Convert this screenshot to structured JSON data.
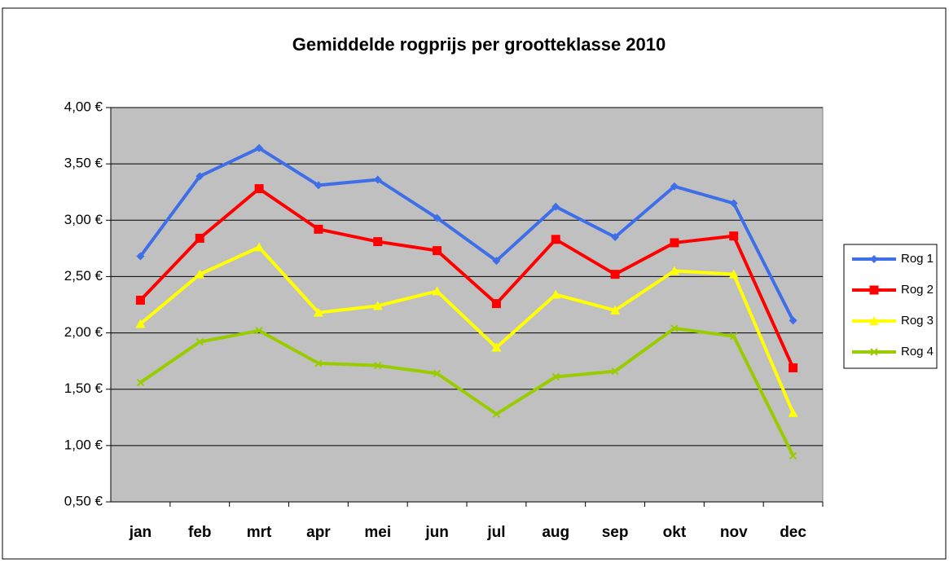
{
  "chart_data": {
    "type": "line",
    "title": "Gemiddelde rogprijs per grootteklasse 2010",
    "categories": [
      "jan",
      "feb",
      "mrt",
      "apr",
      "mei",
      "jun",
      "jul",
      "aug",
      "sep",
      "okt",
      "nov",
      "dec"
    ],
    "series": [
      {
        "name": "Rog 1",
        "color": "#3f6fe8",
        "marker": "diamond",
        "values": [
          2.68,
          3.39,
          3.64,
          3.31,
          3.36,
          3.02,
          2.64,
          3.12,
          2.85,
          3.3,
          3.15,
          2.11
        ]
      },
      {
        "name": "Rog 2",
        "color": "#ff0000",
        "marker": "square",
        "values": [
          2.29,
          2.84,
          3.28,
          2.92,
          2.81,
          2.73,
          2.26,
          2.83,
          2.52,
          2.8,
          2.86,
          1.69
        ]
      },
      {
        "name": "Rog 3",
        "color": "#ffff00",
        "marker": "triangle",
        "values": [
          2.08,
          2.52,
          2.76,
          2.18,
          2.24,
          2.37,
          1.87,
          2.34,
          2.2,
          2.55,
          2.52,
          1.29
        ]
      },
      {
        "name": "Rog 4",
        "color": "#99cc00",
        "marker": "x",
        "values": [
          1.56,
          1.92,
          2.02,
          1.73,
          1.71,
          1.64,
          1.28,
          1.61,
          1.66,
          2.04,
          1.97,
          0.91
        ]
      }
    ],
    "ylim": [
      0.5,
      4.0
    ],
    "yticks": [
      {
        "value": 0.5,
        "label": "0,50 €"
      },
      {
        "value": 1.0,
        "label": "1,00 €"
      },
      {
        "value": 1.5,
        "label": "1,50 €"
      },
      {
        "value": 2.0,
        "label": "2,00 €"
      },
      {
        "value": 2.5,
        "label": "2,50 €"
      },
      {
        "value": 3.0,
        "label": "3,00 €"
      },
      {
        "value": 3.5,
        "label": "3,50 €"
      },
      {
        "value": 4.0,
        "label": "4,00 €"
      }
    ],
    "grid": true,
    "legend": "right",
    "plot_background": "#c0c0c0"
  }
}
